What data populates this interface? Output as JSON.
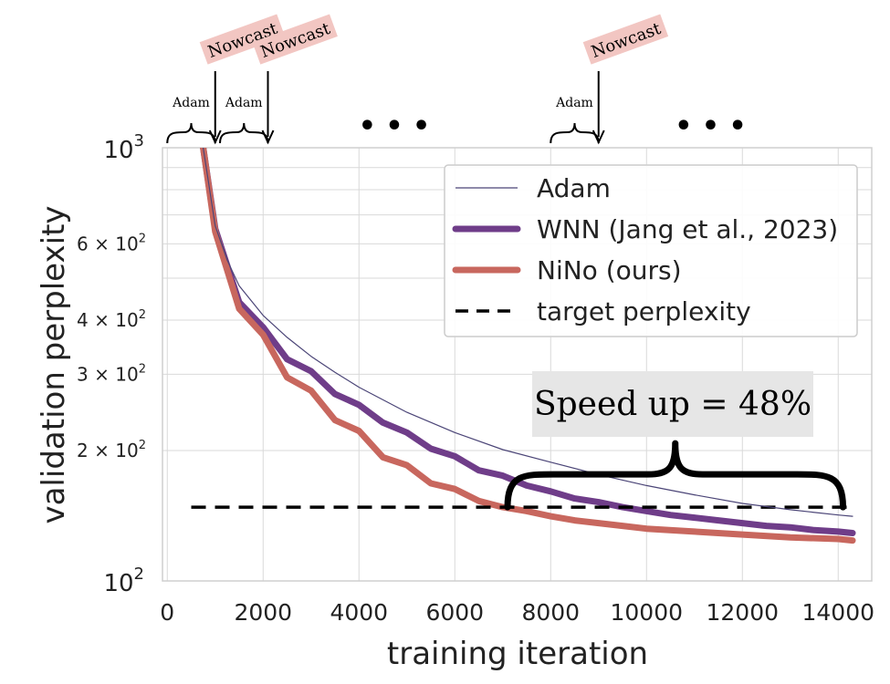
{
  "chart_data": {
    "type": "line",
    "xlabel": "training iteration",
    "ylabel": "validation perplexity",
    "xlim": [
      -100,
      14700
    ],
    "ylim": [
      100,
      1000
    ],
    "y_scale": "log",
    "grid": true,
    "legend_position": "top-right",
    "x_ticks": [
      0,
      2000,
      4000,
      6000,
      8000,
      10000,
      12000,
      14000
    ],
    "x_tick_labels": [
      "0",
      "2000",
      "4000",
      "6000",
      "8000",
      "10000",
      "12000",
      "14000"
    ],
    "y_major_ticks": [
      {
        "value": 100,
        "base": "10",
        "exp": "2"
      },
      {
        "value": 1000,
        "base": "10",
        "exp": "3"
      }
    ],
    "y_minor_labeled_ticks": [
      {
        "value": 200,
        "coef": "2",
        "base": "10",
        "exp": "2"
      },
      {
        "value": 300,
        "coef": "3",
        "base": "10",
        "exp": "2"
      },
      {
        "value": 400,
        "coef": "4",
        "base": "10",
        "exp": "2"
      },
      {
        "value": 600,
        "coef": "6",
        "base": "10",
        "exp": "2"
      }
    ],
    "y_minor_ticks": [
      200,
      300,
      400,
      500,
      600,
      700,
      800,
      900
    ],
    "series": [
      {
        "name": "Adam",
        "color": "#4b4577",
        "style": "thin",
        "x": [
          750,
          1000,
          1250,
          1500,
          2000,
          2500,
          3000,
          3500,
          4000,
          5000,
          6000,
          7000,
          8000,
          9000,
          10000,
          11000,
          12000,
          13000,
          14000,
          14300
        ],
        "y": [
          1000,
          660,
          550,
          480,
          410,
          365,
          330,
          303,
          280,
          245,
          220,
          201,
          188,
          176,
          166,
          158,
          151,
          146,
          142,
          141
        ]
      },
      {
        "name": "WNN (Jang et al., 2023)",
        "color": "#6f3d89",
        "style": "thick",
        "x": [
          750,
          1000,
          1500,
          2000,
          2500,
          3000,
          3500,
          4000,
          4500,
          5000,
          5500,
          6000,
          6500,
          7000,
          7500,
          8000,
          8500,
          9000,
          9500,
          10000,
          10500,
          11000,
          11500,
          12000,
          12500,
          13000,
          13500,
          14000,
          14300
        ],
        "y": [
          1000,
          650,
          440,
          385,
          325,
          305,
          270,
          255,
          232,
          220,
          202,
          194,
          180,
          175,
          166,
          161,
          155,
          152,
          148,
          145,
          142,
          140,
          138,
          136,
          134,
          133,
          131,
          130,
          129
        ]
      },
      {
        "name": "NiNo (ours)",
        "color": "#c8675e",
        "style": "thick",
        "x": [
          750,
          1000,
          1500,
          2000,
          2500,
          3000,
          3500,
          4000,
          4500,
          5000,
          5500,
          6000,
          6500,
          7000,
          7500,
          8000,
          8500,
          9000,
          9500,
          10000,
          11000,
          12000,
          13000,
          14000,
          14300
        ],
        "y": [
          1000,
          640,
          425,
          370,
          295,
          275,
          235,
          222,
          193,
          185,
          168,
          163,
          153,
          148,
          145,
          141,
          138,
          136,
          134,
          132,
          130,
          128,
          126,
          125,
          124
        ]
      },
      {
        "name": "target perplexity",
        "color": "#000000",
        "style": "dashed",
        "x": [
          500,
          14300
        ],
        "y": [
          148,
          148
        ]
      }
    ],
    "annotations": {
      "speedup_text": "Speed up = 48%",
      "speedup_brace": {
        "x_start": 7100,
        "x_end": 14100,
        "y": 148
      },
      "schedule": [
        {
          "label": "Adam",
          "x_start": 0,
          "x_end": 1000
        },
        {
          "label": "Adam",
          "x_start": 1100,
          "x_end": 2100
        },
        {
          "label": "Adam",
          "x_start": 8000,
          "x_end": 9000
        }
      ],
      "nowcast": [
        {
          "label": "Nowcast",
          "x": 1000
        },
        {
          "label": "Nowcast",
          "x": 2100
        },
        {
          "label": "Nowcast",
          "x": 9000
        }
      ],
      "ellipses": [
        {
          "text": "• • •",
          "x": 5500
        },
        {
          "text": "• • •",
          "x": 12100
        }
      ]
    }
  }
}
